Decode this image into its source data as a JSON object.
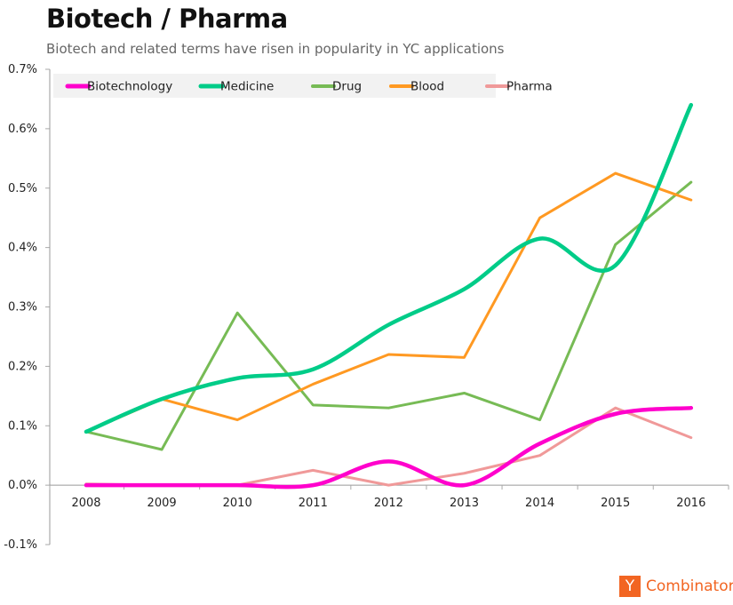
{
  "chart_data": {
    "type": "line",
    "title": "Biotech / Pharma",
    "subtitle": "Biotech and related terms have risen in popularity in YC applications",
    "categories": [
      "2008",
      "2009",
      "2010",
      "2011",
      "2012",
      "2013",
      "2014",
      "2015",
      "2016"
    ],
    "ylim": [
      -0.1,
      0.7
    ],
    "yticks": [
      "-0.1%",
      "0.0%",
      "0.1%",
      "0.2%",
      "0.3%",
      "0.4%",
      "0.5%",
      "0.6%",
      "0.7%"
    ],
    "legend_position": "top-left",
    "series": [
      {
        "name": "Biotechnology",
        "color": "#ff00cc",
        "smooth": true,
        "bold": true,
        "values": [
          0.0,
          0.0,
          0.0,
          0.0,
          0.04,
          0.0,
          0.07,
          0.12,
          0.13
        ]
      },
      {
        "name": "Medicine",
        "color": "#00cc88",
        "smooth": true,
        "bold": true,
        "values": [
          0.09,
          0.145,
          0.18,
          0.195,
          0.27,
          0.33,
          0.415,
          0.37,
          0.64
        ]
      },
      {
        "name": "Drug",
        "color": "#77bb55",
        "smooth": false,
        "bold": false,
        "values": [
          0.09,
          0.06,
          0.29,
          0.135,
          0.13,
          0.155,
          0.11,
          0.405,
          0.51
        ]
      },
      {
        "name": "Blood",
        "color": "#ff9922",
        "smooth": false,
        "bold": false,
        "values": [
          0.09,
          0.145,
          0.11,
          0.17,
          0.22,
          0.215,
          0.45,
          0.525,
          0.48
        ]
      },
      {
        "name": "Pharma",
        "color": "#f09999",
        "smooth": false,
        "bold": false,
        "values": [
          0.002,
          0.0,
          0.0,
          0.025,
          0.0,
          0.02,
          0.05,
          0.13,
          0.08
        ]
      }
    ]
  },
  "logo": {
    "mark": "Y",
    "text": "Combinator"
  }
}
